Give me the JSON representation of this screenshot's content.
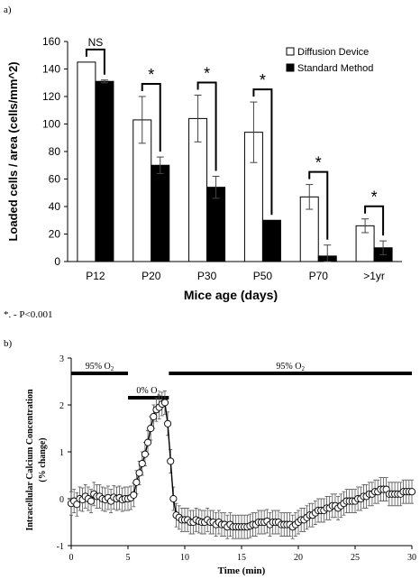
{
  "panel_a_label": "a)",
  "panel_b_label": "b)",
  "footnote": "*. - P<0.001",
  "chart_data": [
    {
      "type": "bar",
      "title": "",
      "xlabel": "Mice age (days)",
      "ylabel": "Loaded cells / area (cells/mm^2)",
      "ylim": [
        0,
        160
      ],
      "yticks": [
        0,
        20,
        40,
        60,
        80,
        100,
        120,
        140,
        160
      ],
      "categories": [
        "P12",
        "P20",
        "P30",
        "P50",
        "P70",
        ">1yr"
      ],
      "series": [
        {
          "name": "Diffusion Device",
          "color": "#ffffff",
          "values": [
            145,
            103,
            104,
            94,
            47,
            26
          ],
          "errors": [
            0,
            17,
            17,
            22,
            9,
            5
          ]
        },
        {
          "name": "Standard Method",
          "color": "#000000",
          "values": [
            131,
            70,
            54,
            30,
            4,
            10
          ],
          "errors": [
            1,
            6,
            8,
            0,
            8,
            5
          ]
        }
      ],
      "significance": [
        "NS",
        "*",
        "*",
        "*",
        "*",
        "*"
      ],
      "legend_position": "top-right",
      "grid": false
    },
    {
      "type": "scatter",
      "title": "",
      "xlabel": "Time (min)",
      "ylabel": "Intracellular Calcium Concentration (% change)",
      "xlim": [
        0,
        30
      ],
      "ylim": [
        -1,
        3
      ],
      "xticks": [
        0,
        5,
        10,
        15,
        20,
        25,
        30
      ],
      "yticks": [
        -1,
        0,
        1,
        2,
        3
      ],
      "conditions": [
        {
          "label": "95% O2",
          "start": 0,
          "end": 5
        },
        {
          "label": "0% O2",
          "start": 5,
          "end": 8.6
        },
        {
          "label": "95% O2",
          "start": 8.6,
          "end": 30
        }
      ],
      "x": [
        0,
        0.25,
        0.5,
        0.75,
        1,
        1.25,
        1.5,
        1.75,
        2,
        2.25,
        2.5,
        2.75,
        3,
        3.25,
        3.5,
        3.75,
        4,
        4.25,
        4.5,
        4.75,
        5,
        5.25,
        5.5,
        5.75,
        6,
        6.25,
        6.5,
        6.75,
        7,
        7.25,
        7.5,
        7.75,
        8,
        8.25,
        8.5,
        8.75,
        9,
        9.25,
        9.5,
        9.75,
        10,
        10.25,
        10.5,
        10.75,
        11,
        11.25,
        11.5,
        11.75,
        12,
        12.25,
        12.5,
        12.75,
        13,
        13.25,
        13.5,
        13.75,
        14,
        14.25,
        14.5,
        14.75,
        15,
        15.25,
        15.5,
        15.75,
        16,
        16.25,
        16.5,
        16.75,
        17,
        17.25,
        17.5,
        17.75,
        18,
        18.25,
        18.5,
        18.75,
        19,
        19.25,
        19.5,
        19.75,
        20,
        20.25,
        20.5,
        20.75,
        21,
        21.25,
        21.5,
        21.75,
        22,
        22.25,
        22.5,
        22.75,
        23,
        23.25,
        23.5,
        23.75,
        24,
        24.25,
        24.5,
        24.75,
        25,
        25.25,
        25.5,
        25.75,
        26,
        26.25,
        26.5,
        26.75,
        27,
        27.25,
        27.5,
        27.75,
        28,
        28.25,
        28.5,
        28.75,
        29,
        29.25,
        29.5,
        29.75,
        30
      ],
      "y": [
        -0.1,
        -0.05,
        -0.12,
        0,
        -0.02,
        0.05,
        0,
        -0.05,
        0.1,
        0.05,
        0.05,
        0,
        -0.02,
        0.02,
        -0.05,
        0.03,
        0,
        0.02,
        -0.02,
        0,
        0,
        0.02,
        0.08,
        0.35,
        0.55,
        0.75,
        0.95,
        1.2,
        1.5,
        1.75,
        1.9,
        1.95,
        2.02,
        2.05,
        1.6,
        0.8,
        0,
        -0.35,
        -0.4,
        -0.45,
        -0.45,
        -0.45,
        -0.5,
        -0.5,
        -0.45,
        -0.48,
        -0.5,
        -0.5,
        -0.45,
        -0.5,
        -0.5,
        -0.55,
        -0.5,
        -0.55,
        -0.55,
        -0.6,
        -0.55,
        -0.6,
        -0.6,
        -0.6,
        -0.6,
        -0.6,
        -0.6,
        -0.58,
        -0.55,
        -0.55,
        -0.5,
        -0.5,
        -0.5,
        -0.48,
        -0.55,
        -0.5,
        -0.5,
        -0.5,
        -0.55,
        -0.55,
        -0.55,
        -0.55,
        -0.6,
        -0.55,
        -0.5,
        -0.45,
        -0.45,
        -0.4,
        -0.35,
        -0.35,
        -0.3,
        -0.25,
        -0.25,
        -0.25,
        -0.2,
        -0.2,
        -0.15,
        -0.15,
        -0.2,
        -0.15,
        -0.1,
        -0.05,
        -0.05,
        -0.05,
        -0.05,
        0,
        0,
        0.05,
        0.05,
        0.1,
        0.1,
        0.15,
        0.15,
        0.2,
        0.2,
        0.2,
        0.1,
        0.1,
        0.1,
        0.1,
        0.1,
        0.15,
        0.15,
        0.15,
        0.15
      ],
      "error": 0.25
    }
  ]
}
